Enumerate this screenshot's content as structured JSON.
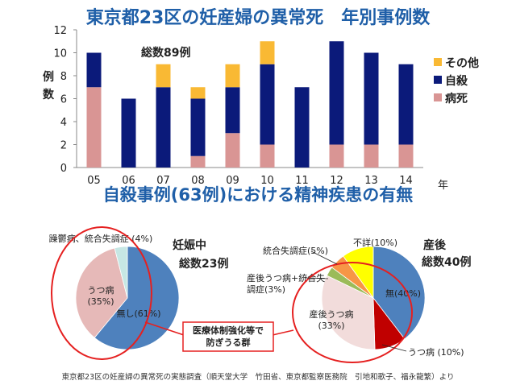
{
  "titles": {
    "main": "東京都23区の妊産婦の異常死　年別事例数",
    "second": "自殺事例(63例)における精神疾患の有無"
  },
  "chart_data": [
    {
      "type": "bar",
      "stacked": true,
      "title": "東京都23区の妊産婦の異常死　年別事例数",
      "ylabel": "例数",
      "xlabel": "年",
      "categories": [
        "05",
        "06",
        "07",
        "08",
        "09",
        "10",
        "11",
        "12",
        "13",
        "14"
      ],
      "ylim": [
        0,
        12
      ],
      "yticks": [
        0,
        2,
        4,
        6,
        8,
        10,
        12
      ],
      "annotation": "総数89例",
      "legend_position": "right",
      "series": [
        {
          "name": "病死",
          "color": "#d99594",
          "values": [
            7,
            0,
            0,
            1,
            3,
            2,
            0,
            2,
            2,
            2
          ]
        },
        {
          "name": "自殺",
          "color": "#0b1a7a",
          "values": [
            3,
            6,
            7,
            5,
            4,
            7,
            7,
            9,
            8,
            7
          ]
        },
        {
          "name": "その他",
          "color": "#f9b934",
          "values": [
            0,
            0,
            2,
            1,
            2,
            2,
            0,
            0,
            0,
            0
          ]
        }
      ],
      "legend_order": [
        "その他",
        "自殺",
        "病死"
      ]
    },
    {
      "type": "pie",
      "title": "妊娠中",
      "subtitle": "総数23例",
      "slices": [
        {
          "label": "無し(61%)",
          "value": 61,
          "color": "#4e81bd"
        },
        {
          "label": "うつ病\n(35%)",
          "value": 35,
          "color": "#e6b9b8"
        },
        {
          "label": "躁鬱病、統合失調症 (4%)",
          "value": 4,
          "color": "#c6e7e4"
        }
      ]
    },
    {
      "type": "pie",
      "title": "産後",
      "subtitle": "総数40例",
      "slices": [
        {
          "label": "無(40%)",
          "value": 40,
          "color": "#4e81bd"
        },
        {
          "label": "うつ病 (10%)",
          "value": 10,
          "color": "#c00000"
        },
        {
          "label": "産後うつ病\n(33%)",
          "value": 33,
          "color": "#f2dcdb"
        },
        {
          "label": "産後うつ病+統合失\n調症(3%)",
          "value": 3,
          "color": "#9bbb59"
        },
        {
          "label": "統合失調症(5%)",
          "value": 5,
          "color": "#f79646"
        },
        {
          "label": "不詳(10%)",
          "value": 10,
          "color": "#ffff00"
        }
      ]
    }
  ],
  "callout": "医療体制強化等で\n防ぎうる群",
  "source": "東京都23区の妊産婦の異常死の実態調査（順天堂大学　竹田省、東京都監察医務院　引地和歌子、福永龍繁）より",
  "colors": {
    "title": "#1f5fa8",
    "circle": "#e52020",
    "callout_border": "#e52020",
    "callout_text": "#e52020"
  }
}
